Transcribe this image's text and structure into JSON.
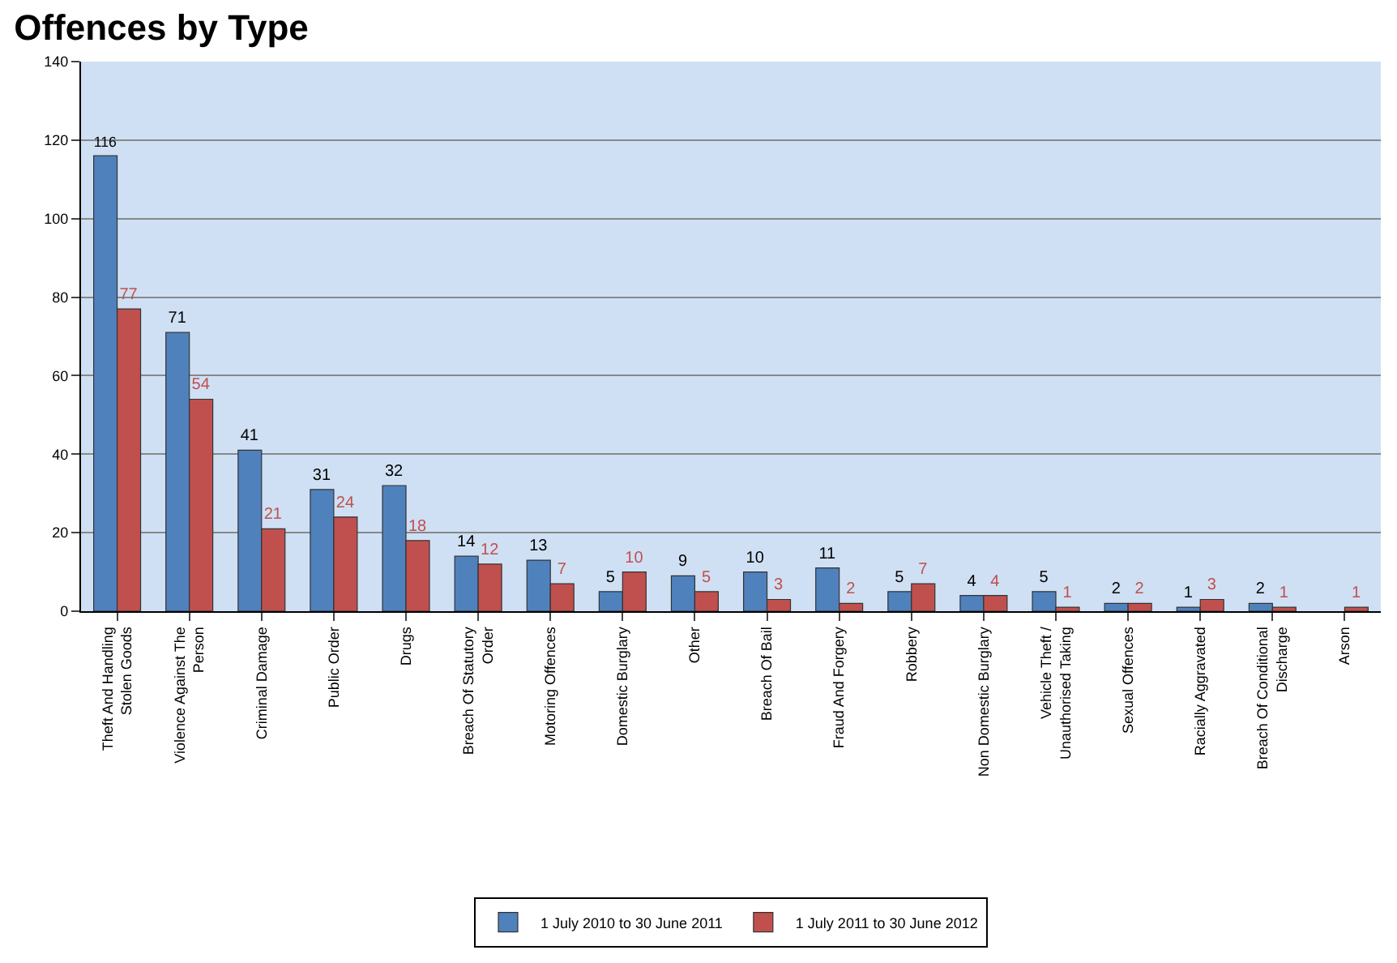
{
  "chart_data": {
    "type": "bar",
    "title": "Offences by Type",
    "categories": [
      "Theft And Handling Stolen Goods",
      "Violence Against The Person",
      "Criminal Damage",
      "Public Order",
      "Drugs",
      "Breach Of Statutory Order",
      "Motoring Offences",
      "Domestic Burglary",
      "Other",
      "Breach Of Bail",
      "Fraud And Forgery",
      "Robbery",
      "Non Domestic Burglary",
      "Vehicle Theft / Unauthorised Taking",
      "Sexual Offences",
      "Racially Aggravated",
      "Breach Of Conditional Discharge",
      "Arson"
    ],
    "series": [
      {
        "name": "1 July 2010 to 30 June 2011",
        "color": "#4f81bd",
        "values": [
          116,
          71,
          41,
          31,
          32,
          14,
          13,
          5,
          9,
          10,
          11,
          5,
          4,
          5,
          2,
          1,
          2,
          null
        ]
      },
      {
        "name": "1 July 2011 to 30 June 2012",
        "color": "#c0504d",
        "values": [
          77,
          54,
          21,
          24,
          18,
          12,
          7,
          10,
          5,
          3,
          2,
          7,
          4,
          1,
          2,
          3,
          1,
          1
        ]
      }
    ],
    "ylim": [
      0,
      140
    ],
    "yticks": [
      0,
      20,
      40,
      60,
      80,
      100,
      120,
      140
    ],
    "grid": "y",
    "legend": "bottom",
    "data_labels": true
  }
}
